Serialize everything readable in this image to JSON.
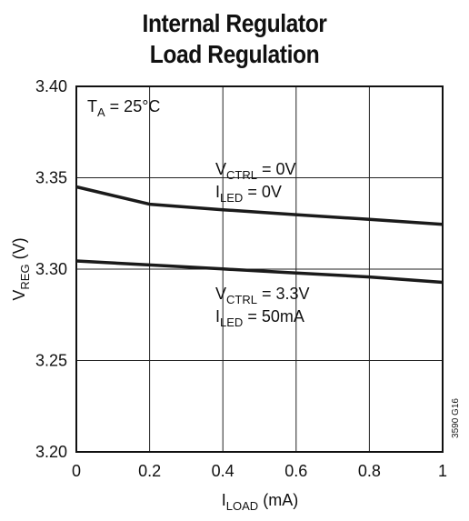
{
  "title_line1": "Internal Regulator",
  "title_line2": "Load Regulation",
  "figure_code": "3590 G16",
  "chart_data": {
    "type": "line",
    "xlabel": {
      "main": "I",
      "sub": "LOAD",
      "rest": " (mA)"
    },
    "ylabel": {
      "main": "V",
      "sub": "REG",
      "rest": " (V)"
    },
    "xlim": [
      0,
      1
    ],
    "ylim": [
      3.2,
      3.4
    ],
    "x_ticks": [
      "0",
      "0.2",
      "0.4",
      "0.6",
      "0.8",
      "1"
    ],
    "y_ticks": [
      "3.20",
      "3.25",
      "3.30",
      "3.35",
      "3.40"
    ],
    "grid": true,
    "condition": {
      "main": "T",
      "sub": "A",
      "rest": " = 25°C"
    },
    "series": [
      {
        "x": [
          0,
          0.2,
          0.4,
          0.6,
          0.8,
          1.0
        ],
        "y": [
          3.345,
          3.3355,
          3.3325,
          3.3298,
          3.3272,
          3.3245
        ],
        "label1": {
          "main": "V",
          "sub": "CTRL",
          "rest": " = 0V"
        },
        "label2": {
          "main": "I",
          "sub": "LED",
          "rest": " = 0V"
        }
      },
      {
        "x": [
          0,
          0.2,
          0.4,
          0.6,
          0.8,
          1.0
        ],
        "y": [
          3.3045,
          3.3023,
          3.3001,
          3.2979,
          3.2957,
          3.2928
        ],
        "label1": {
          "main": "V",
          "sub": "CTRL",
          "rest": " = 3.3V"
        },
        "label2": {
          "main": "I",
          "sub": "LED",
          "rest": " = 50mA"
        }
      }
    ],
    "line_color": "#1a1a1a"
  }
}
